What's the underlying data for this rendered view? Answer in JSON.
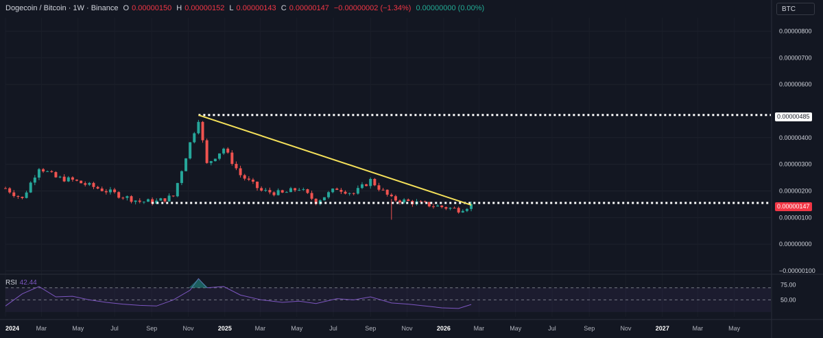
{
  "symbol": {
    "name": "Dogecoin / Bitcoin · 1W · Binance",
    "o_label": "O",
    "o": "0.00000150",
    "h_label": "H",
    "h": "0.00000152",
    "l_label": "L",
    "l": "0.00000143",
    "c_label": "C",
    "c": "0.00000147",
    "change": "−0.00000002 (−1.34%)",
    "volume": "0.00000000 (0.00%)"
  },
  "currency_button": "BTC",
  "price_axis": {
    "ticks": [
      "0.00000800",
      "0.00000700",
      "0.00000600",
      "0.00000400",
      "0.00000300",
      "0.00000200",
      "0.00000100",
      "0.00000000",
      "−0.00000100"
    ],
    "resistance_label": "0.00000485",
    "current_label": "0.00000147"
  },
  "rsi": {
    "label": "RSI",
    "value": "42.44",
    "ticks": [
      "75.00",
      "50.00"
    ]
  },
  "time_axis": [
    "2024",
    "Mar",
    "May",
    "Jul",
    "Sep",
    "Nov",
    "2025",
    "Mar",
    "May",
    "Jul",
    "Sep",
    "Nov",
    "2026",
    "Mar",
    "May",
    "Jul",
    "Sep",
    "Nov",
    "2027",
    "Mar",
    "May"
  ],
  "colors": {
    "background": "#131722",
    "up": "#26a69a",
    "down": "#ef5350",
    "trendline": "#f5e15a",
    "rsi_line": "#7e57c2",
    "current_price_tag": "#f23645"
  },
  "chart_data": {
    "type": "candlestick",
    "interval": "1W",
    "ylim": [
      -1e-06,
      8.5e-06
    ],
    "dates": [
      "2024-01-01",
      "2024-01-29",
      "2024-02-26",
      "2024-03-25",
      "2024-04-22",
      "2024-05-20",
      "2024-06-17",
      "2024-07-15",
      "2024-08-12",
      "2024-09-09",
      "2024-10-07",
      "2024-11-04",
      "2024-11-18",
      "2024-12-02",
      "2024-12-30",
      "2025-01-27",
      "2025-03-03",
      "2025-04-07",
      "2025-05-05",
      "2025-06-02",
      "2025-07-07",
      "2025-08-04",
      "2025-09-01",
      "2025-10-06",
      "2025-11-03",
      "2025-12-01",
      "2025-12-29",
      "2026-01-26",
      "2026-02-16"
    ],
    "close": [
      2.1e-06,
      1.7e-06,
      2.9e-06,
      2.5e-06,
      2.4e-06,
      2.2e-06,
      2e-06,
      1.8e-06,
      1.6e-06,
      1.6e-06,
      1.8e-06,
      3.8e-06,
      4.7e-06,
      3e-06,
      3.6e-06,
      2.6e-06,
      2e-06,
      1.9e-06,
      2.1e-06,
      1.6e-06,
      2.1e-06,
      1.9e-06,
      2.4e-06,
      1.7e-06,
      1.6e-06,
      1.5e-06,
      1.4e-06,
      1.3e-06,
      1.47e-06
    ],
    "trendline": {
      "from": [
        "2024-11-18",
        4.85e-06
      ],
      "to": [
        "2026-02-16",
        1.47e-06
      ]
    },
    "horizontal_levels": [
      4.85e-06,
      1.55e-06
    ],
    "rsi_values": [
      40,
      60,
      72,
      55,
      56,
      50,
      46,
      43,
      41,
      40,
      50,
      66,
      85,
      70,
      72,
      58,
      50,
      46,
      48,
      44,
      52,
      50,
      55,
      45,
      43,
      40,
      37,
      36,
      42.44
    ]
  }
}
